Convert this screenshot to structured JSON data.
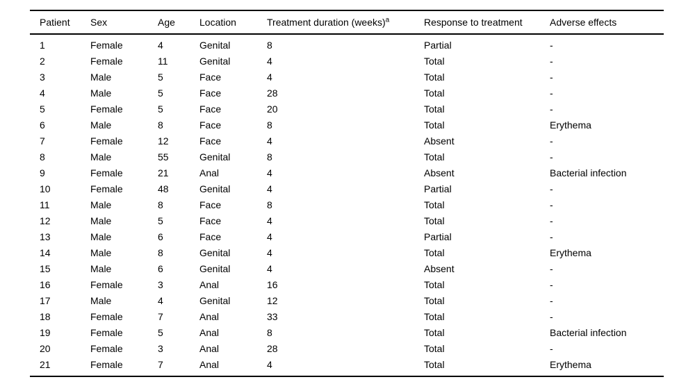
{
  "table": {
    "columns": [
      {
        "label": "Patient"
      },
      {
        "label": "Sex"
      },
      {
        "label": "Age"
      },
      {
        "label": "Location"
      },
      {
        "label": "Treatment duration (weeks)",
        "superscript": "a"
      },
      {
        "label": "Response to treatment"
      },
      {
        "label": "Adverse effects"
      }
    ],
    "rows": [
      [
        "1",
        "Female",
        "4",
        "Genital",
        "8",
        "Partial",
        "-"
      ],
      [
        "2",
        "Female",
        "11",
        "Genital",
        "4",
        "Total",
        "-"
      ],
      [
        "3",
        "Male",
        "5",
        "Face",
        "4",
        "Total",
        "-"
      ],
      [
        "4",
        "Male",
        "5",
        "Face",
        "28",
        "Total",
        "-"
      ],
      [
        "5",
        "Female",
        "5",
        "Face",
        "20",
        "Total",
        "-"
      ],
      [
        "6",
        "Male",
        "8",
        "Face",
        "8",
        "Total",
        "Erythema"
      ],
      [
        "7",
        "Female",
        "12",
        "Face",
        "4",
        "Absent",
        "-"
      ],
      [
        "8",
        "Male",
        "55",
        "Genital",
        "8",
        "Total",
        "-"
      ],
      [
        "9",
        "Female",
        "21",
        "Anal",
        "4",
        "Absent",
        "Bacterial infection"
      ],
      [
        "10",
        "Female",
        "48",
        "Genital",
        "4",
        "Partial",
        "-"
      ],
      [
        "11",
        "Male",
        "8",
        "Face",
        "8",
        "Total",
        "-"
      ],
      [
        "12",
        "Male",
        "5",
        "Face",
        "4",
        "Total",
        "-"
      ],
      [
        "13",
        "Male",
        "6",
        "Face",
        "4",
        "Partial",
        "-"
      ],
      [
        "14",
        "Male",
        "8",
        "Genital",
        "4",
        "Total",
        "Erythema"
      ],
      [
        "15",
        "Male",
        "6",
        "Genital",
        "4",
        "Absent",
        "-"
      ],
      [
        "16",
        "Female",
        "3",
        "Anal",
        "16",
        "Total",
        "-"
      ],
      [
        "17",
        "Male",
        "4",
        "Genital",
        "12",
        "Total",
        "-"
      ],
      [
        "18",
        "Female",
        "7",
        "Anal",
        "33",
        "Total",
        "-"
      ],
      [
        "19",
        "Female",
        "5",
        "Anal",
        "8",
        "Total",
        "Bacterial infection"
      ],
      [
        "20",
        "Female",
        "3",
        "Anal",
        "28",
        "Total",
        "-"
      ],
      [
        "21",
        "Female",
        "7",
        "Anal",
        "4",
        "Total",
        "Erythema"
      ]
    ]
  },
  "colors": {
    "background": "#ffffff",
    "text": "#000000",
    "rule": "#000000"
  }
}
